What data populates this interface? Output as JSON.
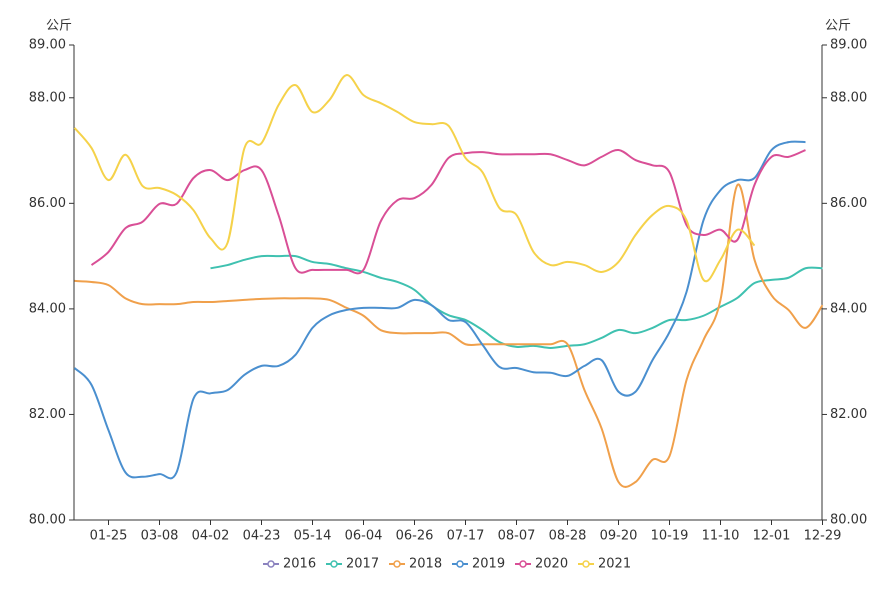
{
  "chart_data": {
    "type": "line",
    "y_unit": "公斤",
    "categories": [
      null,
      null,
      "01-25",
      null,
      null,
      "03-08",
      null,
      null,
      "04-02",
      null,
      null,
      "04-23",
      null,
      null,
      "05-14",
      null,
      null,
      "06-04",
      null,
      null,
      "06-26",
      null,
      null,
      "07-17",
      null,
      null,
      "08-07",
      null,
      null,
      "08-28",
      null,
      null,
      "09-20",
      null,
      null,
      "10-19",
      null,
      null,
      "11-10",
      null,
      null,
      "12-01",
      null,
      null,
      "12-29"
    ],
    "ylim": [
      80,
      89
    ],
    "yticks": [
      {
        "value": 80,
        "label": "80.00"
      },
      {
        "value": 82,
        "label": "82.00"
      },
      {
        "value": 84,
        "label": "84.00"
      },
      {
        "value": 86,
        "label": "86.00"
      },
      {
        "value": 88,
        "label": "88.00"
      },
      {
        "value": 89,
        "label": "89.00"
      }
    ],
    "y2lim": [
      80,
      89
    ],
    "y2ticks": [
      {
        "value": 80,
        "label": "80.00"
      },
      {
        "value": 82,
        "label": "82.00"
      },
      {
        "value": 84,
        "label": "84.00"
      },
      {
        "value": 86,
        "label": "86.00"
      },
      {
        "value": 88,
        "label": "88.00"
      },
      {
        "value": 89,
        "label": "89.00"
      }
    ],
    "legend": "bottom",
    "series": [
      {
        "name": "2016",
        "color": "#8b82bf",
        "values": [
          null,
          null,
          null,
          null,
          null,
          null,
          null,
          null,
          null,
          null,
          null,
          null,
          null,
          null,
          null,
          null,
          null,
          null,
          null,
          null,
          null,
          null,
          null,
          null,
          null,
          null,
          null,
          null,
          null,
          null,
          null,
          null,
          null,
          null,
          null,
          null,
          null,
          null,
          null,
          null,
          null,
          null,
          null,
          null,
          null
        ]
      },
      {
        "name": "2017",
        "color": "#3fc1b0",
        "values": [
          null,
          null,
          null,
          null,
          null,
          null,
          null,
          null,
          84.77,
          84.83,
          84.93,
          85.0,
          85.0,
          85.0,
          84.89,
          84.85,
          84.77,
          84.7,
          84.59,
          84.51,
          84.36,
          84.07,
          83.88,
          83.79,
          83.6,
          83.37,
          83.28,
          83.3,
          83.26,
          83.3,
          83.33,
          83.45,
          83.6,
          83.54,
          83.64,
          83.79,
          83.79,
          83.87,
          84.04,
          84.21,
          84.49,
          84.55,
          84.59,
          84.77,
          84.77
        ]
      },
      {
        "name": "2018",
        "color": "#f0a04b",
        "values": [
          84.53,
          84.51,
          84.45,
          84.2,
          84.09,
          84.09,
          84.09,
          84.13,
          84.13,
          84.15,
          84.17,
          84.19,
          84.2,
          84.2,
          84.2,
          84.17,
          84.02,
          83.87,
          83.6,
          83.54,
          83.54,
          83.54,
          83.54,
          83.33,
          83.33,
          83.33,
          83.33,
          83.33,
          83.33,
          83.33,
          82.46,
          81.74,
          80.72,
          80.72,
          81.14,
          81.21,
          82.65,
          83.41,
          84.17,
          86.35,
          84.93,
          84.26,
          83.98,
          83.64,
          84.07
        ]
      },
      {
        "name": "2019",
        "color": "#4a8fcf",
        "values": [
          82.88,
          82.56,
          81.7,
          80.9,
          80.82,
          80.87,
          80.9,
          82.3,
          82.4,
          82.46,
          82.75,
          82.92,
          82.92,
          83.13,
          83.64,
          83.88,
          83.98,
          84.02,
          84.02,
          84.02,
          84.17,
          84.07,
          83.79,
          83.75,
          83.32,
          82.9,
          82.88,
          82.8,
          82.79,
          82.73,
          82.92,
          83.03,
          82.43,
          82.43,
          83.03,
          83.56,
          84.32,
          85.68,
          86.25,
          86.44,
          86.48,
          87.01,
          87.16,
          87.16,
          null
        ]
      },
      {
        "name": "2020",
        "color": "#d94f96",
        "values": [
          null,
          84.83,
          85.08,
          85.53,
          85.65,
          85.99,
          85.99,
          86.48,
          86.63,
          86.44,
          86.63,
          86.63,
          85.78,
          84.77,
          84.74,
          84.74,
          84.74,
          84.74,
          85.65,
          86.06,
          86.1,
          86.35,
          86.86,
          86.95,
          86.97,
          86.93,
          86.93,
          86.93,
          86.93,
          86.82,
          86.72,
          86.88,
          87.01,
          86.82,
          86.72,
          86.59,
          85.59,
          85.4,
          85.5,
          85.31,
          86.35,
          86.88,
          86.88,
          87.01,
          null
        ]
      },
      {
        "name": "2021",
        "color": "#f5d24a",
        "values": [
          87.43,
          87.05,
          86.44,
          86.92,
          86.33,
          86.29,
          86.16,
          85.87,
          85.34,
          85.25,
          87.05,
          87.14,
          87.86,
          88.24,
          87.73,
          87.96,
          88.43,
          88.05,
          87.9,
          87.73,
          87.54,
          87.5,
          87.47,
          86.86,
          86.59,
          85.91,
          85.78,
          85.08,
          84.83,
          84.89,
          84.83,
          84.7,
          84.89,
          85.4,
          85.78,
          85.95,
          85.68,
          84.55,
          84.93,
          85.5,
          85.2,
          null,
          null,
          null,
          null
        ]
      }
    ]
  }
}
